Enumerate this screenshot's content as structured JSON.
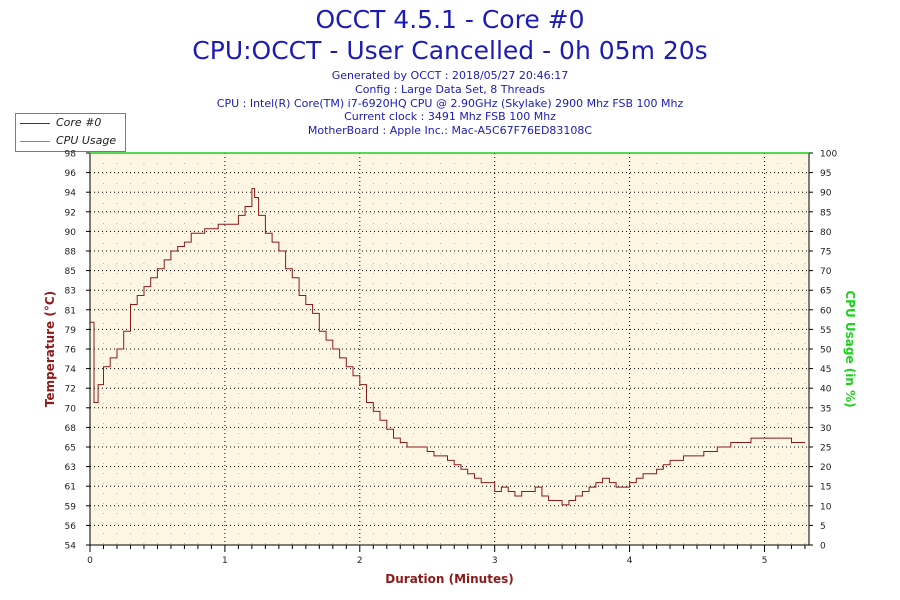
{
  "header": {
    "title": "OCCT 4.5.1 - Core #0",
    "subtitle": "CPU:OCCT - User Cancelled - 0h 05m 20s",
    "info_lines": [
      "Generated by OCCT : 2018/05/27 20:46:17",
      "Config : Large Data Set, 8 Threads",
      "CPU : Intel(R) Core(TM) i7-6920HQ CPU @ 2.90GHz (Skylake) 2900 Mhz FSB 100 Mhz",
      "Current clock : 3491 Mhz FSB 100 Mhz",
      "MotherBoard : Apple Inc.: Mac-A5C67F76ED83108C"
    ]
  },
  "legend": {
    "items": [
      {
        "label": "Core #0",
        "color": "#8b1a1a"
      },
      {
        "label": "CPU Usage",
        "color": "#19d219"
      }
    ]
  },
  "colors": {
    "plot_bg": "#fdf6e3",
    "temperature": "#8b1a1a",
    "cpu_usage": "#19d219",
    "axis_label_left": "#8b1a1a",
    "axis_label_right": "#19d219",
    "title": "#1c1cb4"
  },
  "chart_data": {
    "type": "line",
    "title": "OCCT 4.5.1 - Core #0",
    "xlabel": "Duration (Minutes)",
    "ylabel": "Temperature (°C)",
    "y2label": "CPU Usage (in %)",
    "xlim": [
      0,
      5.33
    ],
    "ylim": [
      54,
      98
    ],
    "y2lim": [
      0,
      100
    ],
    "x_ticks": [
      "0",
      "1",
      "2",
      "3",
      "4",
      "5"
    ],
    "y_ticks": [
      "54",
      "56",
      "59",
      "61",
      "63",
      "65",
      "68",
      "70",
      "72",
      "74",
      "76",
      "79",
      "81",
      "83",
      "85",
      "88",
      "90",
      "92",
      "94",
      "96",
      "98"
    ],
    "y2_ticks": [
      "0",
      "5",
      "10",
      "15",
      "20",
      "25",
      "30",
      "35",
      "40",
      "45",
      "50",
      "55",
      "60",
      "65",
      "70",
      "75",
      "80",
      "85",
      "90",
      "95",
      "100"
    ],
    "grid": true,
    "legend_position": "top-left",
    "series": [
      {
        "name": "Core #0",
        "axis": "left",
        "x": [
          0.0,
          0.03,
          0.06,
          0.1,
          0.15,
          0.2,
          0.25,
          0.3,
          0.35,
          0.4,
          0.45,
          0.5,
          0.55,
          0.6,
          0.65,
          0.7,
          0.75,
          0.8,
          0.85,
          0.9,
          0.95,
          1.0,
          1.05,
          1.1,
          1.15,
          1.2,
          1.22,
          1.25,
          1.3,
          1.35,
          1.4,
          1.45,
          1.5,
          1.55,
          1.6,
          1.65,
          1.7,
          1.75,
          1.8,
          1.85,
          1.9,
          1.95,
          2.0,
          2.05,
          2.1,
          2.15,
          2.2,
          2.25,
          2.3,
          2.35,
          2.4,
          2.45,
          2.5,
          2.55,
          2.6,
          2.65,
          2.7,
          2.75,
          2.8,
          2.85,
          2.9,
          2.95,
          3.0,
          3.05,
          3.1,
          3.15,
          3.2,
          3.25,
          3.3,
          3.35,
          3.4,
          3.45,
          3.5,
          3.55,
          3.6,
          3.65,
          3.7,
          3.75,
          3.8,
          3.85,
          3.9,
          3.95,
          4.0,
          4.05,
          4.1,
          4.15,
          4.2,
          4.25,
          4.3,
          4.35,
          4.4,
          4.45,
          4.5,
          4.55,
          4.6,
          4.65,
          4.7,
          4.75,
          4.8,
          4.85,
          4.9,
          4.95,
          5.0,
          5.05,
          5.1,
          5.15,
          5.2,
          5.25,
          5.3
        ],
        "values": [
          79,
          70,
          72,
          74,
          75,
          76,
          78,
          81,
          82,
          83,
          84,
          85,
          86,
          87,
          87.5,
          88,
          89,
          89,
          89.5,
          89.5,
          90,
          90,
          90,
          91,
          92,
          94,
          93,
          91,
          89,
          88,
          87,
          85,
          84,
          82,
          81,
          80,
          78,
          77,
          76,
          75,
          74,
          73,
          72,
          70,
          69,
          68,
          67,
          66,
          65.5,
          65,
          65,
          65,
          64.5,
          64,
          64,
          63.5,
          63,
          62.5,
          62,
          61.5,
          61,
          61,
          60,
          60.5,
          60,
          59.5,
          60,
          60,
          60.5,
          59.5,
          59,
          59,
          58.5,
          59,
          59.5,
          60,
          60.5,
          61,
          61.5,
          61,
          60.5,
          60.5,
          61,
          61.5,
          62,
          62,
          62.5,
          63,
          63.5,
          63.5,
          64,
          64,
          64,
          64.5,
          64.5,
          65,
          65,
          65.5,
          65.5,
          65.5,
          66,
          66,
          66,
          66,
          66,
          66,
          65.5,
          65.5,
          65.5
        ]
      },
      {
        "name": "CPU Usage",
        "axis": "right",
        "x": [
          0,
          5.33
        ],
        "values": [
          100,
          100
        ]
      }
    ]
  }
}
